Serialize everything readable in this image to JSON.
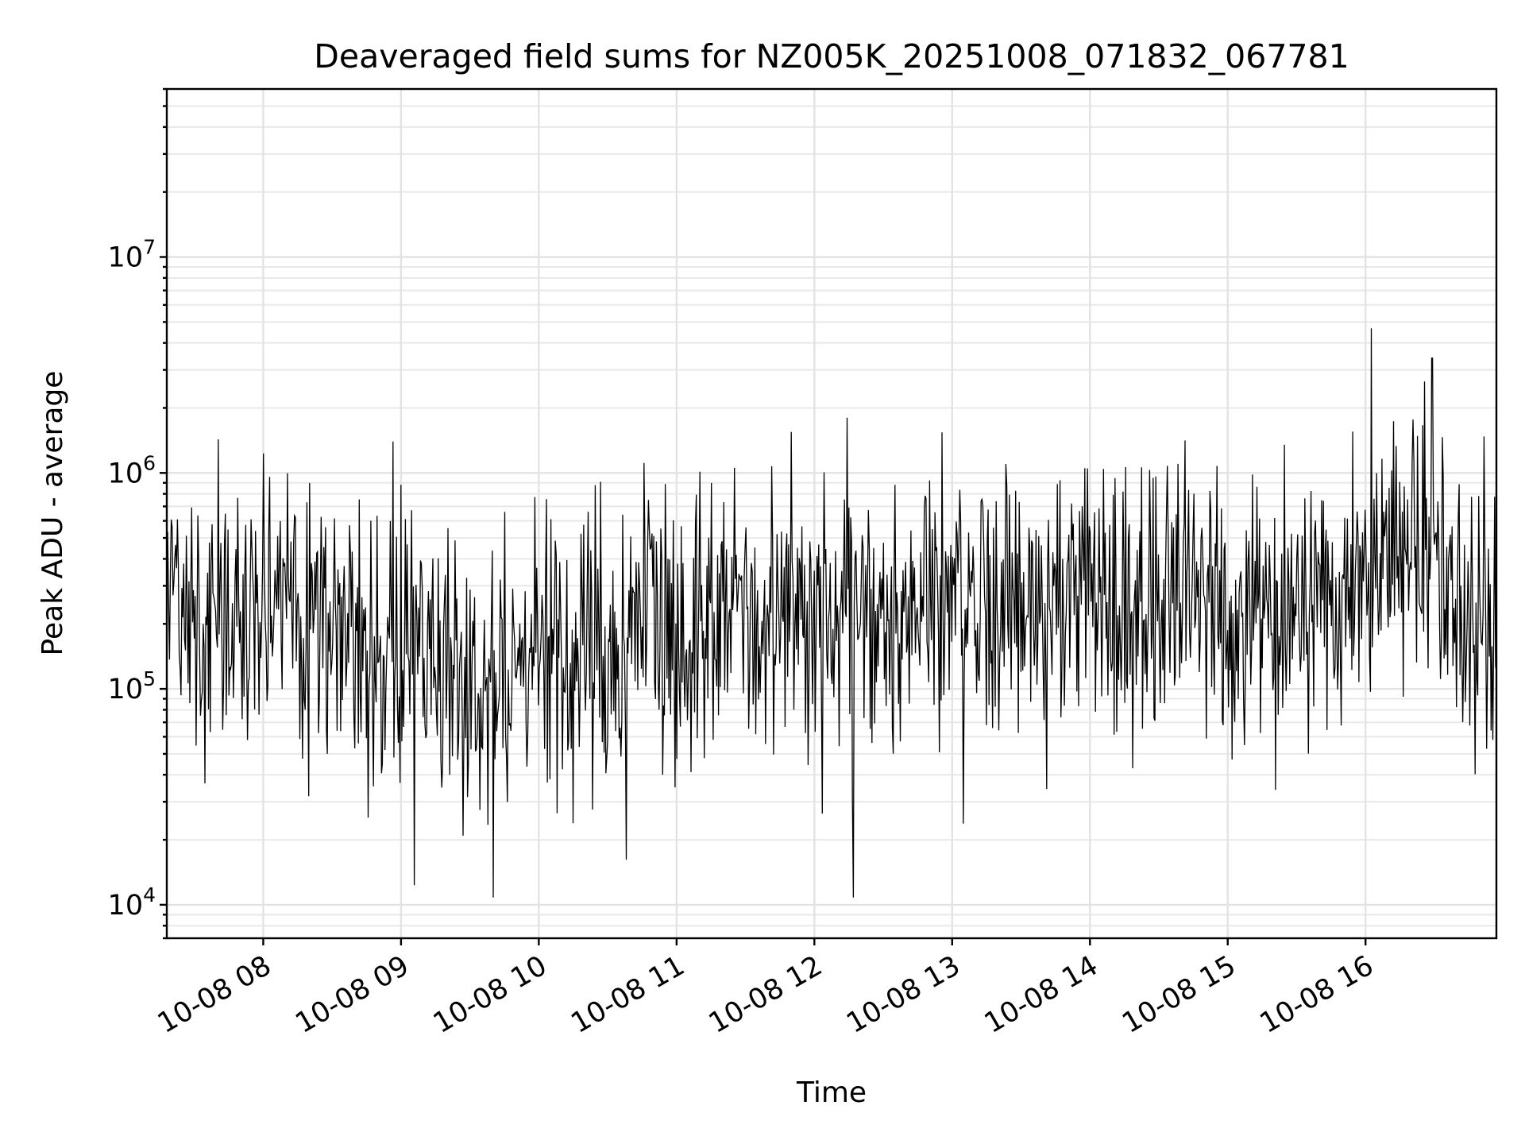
{
  "chart_data": {
    "type": "line",
    "title": "Deaveraged field sums for NZ005K_20251008_071832_067781",
    "xlabel": "Time",
    "ylabel": "Peak ADU - average",
    "yscale": "log",
    "grid": true,
    "xlim": [
      "2025-10-08 07:18",
      "2025-10-08 16:57"
    ],
    "ylim": [
      7000,
      60000000
    ],
    "x_ticks": [
      "10-08 08",
      "10-08 09",
      "10-08 10",
      "10-08 11",
      "10-08 12",
      "10-08 13",
      "10-08 14",
      "10-08 15",
      "10-08 16"
    ],
    "y_ticks": [
      {
        "base": "10",
        "exp": "4",
        "value": 10000
      },
      {
        "base": "10",
        "exp": "5",
        "value": 100000
      },
      {
        "base": "10",
        "exp": "6",
        "value": 1000000
      },
      {
        "base": "10",
        "exp": "7",
        "value": 10000000
      }
    ],
    "series": [
      {
        "color": "#000000",
        "x": [
          "2025-10-08 07:18",
          "2025-10-08 07:30",
          "2025-10-08 07:45",
          "2025-10-08 08:00",
          "2025-10-08 08:15",
          "2025-10-08 08:30",
          "2025-10-08 08:45",
          "2025-10-08 09:00",
          "2025-10-08 09:15",
          "2025-10-08 09:30",
          "2025-10-08 09:45",
          "2025-10-08 10:00",
          "2025-10-08 10:15",
          "2025-10-08 10:30",
          "2025-10-08 10:45",
          "2025-10-08 11:00",
          "2025-10-08 11:15",
          "2025-10-08 11:30",
          "2025-10-08 11:45",
          "2025-10-08 12:00",
          "2025-10-08 12:15",
          "2025-10-08 12:30",
          "2025-10-08 12:45",
          "2025-10-08 13:00",
          "2025-10-08 13:15",
          "2025-10-08 13:30",
          "2025-10-08 13:45",
          "2025-10-08 14:00",
          "2025-10-08 14:15",
          "2025-10-08 14:30",
          "2025-10-08 14:45",
          "2025-10-08 15:00",
          "2025-10-08 15:15",
          "2025-10-08 15:30",
          "2025-10-08 15:45",
          "2025-10-08 16:00",
          "2025-10-08 16:15",
          "2025-10-08 16:30",
          "2025-10-08 16:45",
          "2025-10-08 16:57"
        ],
        "values": [
          300000,
          220000,
          230000,
          240000,
          230000,
          200000,
          170000,
          150000,
          140000,
          110000,
          110000,
          120000,
          130000,
          150000,
          180000,
          200000,
          210000,
          200000,
          230000,
          220000,
          210000,
          230000,
          240000,
          260000,
          270000,
          270000,
          270000,
          250000,
          240000,
          230000,
          230000,
          200000,
          170000,
          250000,
          220000,
          330000,
          420000,
          450000,
          190000,
          170000
        ]
      }
    ],
    "annotations": [
      {
        "x": "2025-10-08 11:50",
        "y": 1550000
      },
      {
        "x": "2025-10-08 09:40",
        "y": 10800
      },
      {
        "x": "2025-10-08 12:17",
        "y": 10800
      },
      {
        "x": "2025-10-08 16:29",
        "y": 3400000
      }
    ]
  }
}
